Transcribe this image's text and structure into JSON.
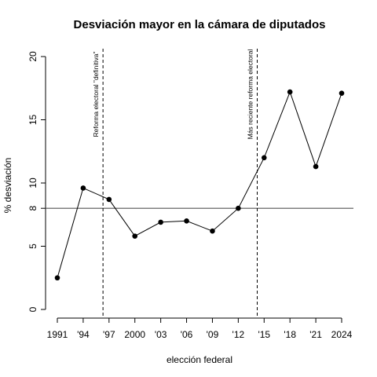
{
  "chart_data": {
    "type": "line",
    "title": "Desviación mayor en la cámara de diputados",
    "xlabel": "elección federal",
    "ylabel": "% desviación",
    "x": [
      1991,
      1994,
      1997,
      2000,
      2003,
      2006,
      2009,
      2012,
      2015,
      2018,
      2021,
      2024
    ],
    "x_tick_labels": [
      "1991",
      "'94",
      "'97",
      "2000",
      "'03",
      "'06",
      "'09",
      "'12",
      "'15",
      "'18",
      "'21",
      "2024"
    ],
    "series": [
      {
        "name": "desviación",
        "values": [
          2.5,
          9.6,
          8.7,
          5.8,
          6.9,
          7.0,
          6.2,
          8.0,
          12.0,
          17.2,
          11.3,
          17.1
        ]
      }
    ],
    "xlim": [
      1991,
      2024
    ],
    "ylim": [
      0,
      20
    ],
    "y_ticks": [
      0,
      5,
      8,
      10,
      15,
      20
    ],
    "reference_line": {
      "y": 8,
      "label": "8"
    },
    "vertical_markers": [
      {
        "x": 1996.3,
        "label": "Reforma electoral \"definitiva\""
      },
      {
        "x": 2014.2,
        "label": "Más reciente reforma electoral"
      }
    ],
    "grid": false
  }
}
